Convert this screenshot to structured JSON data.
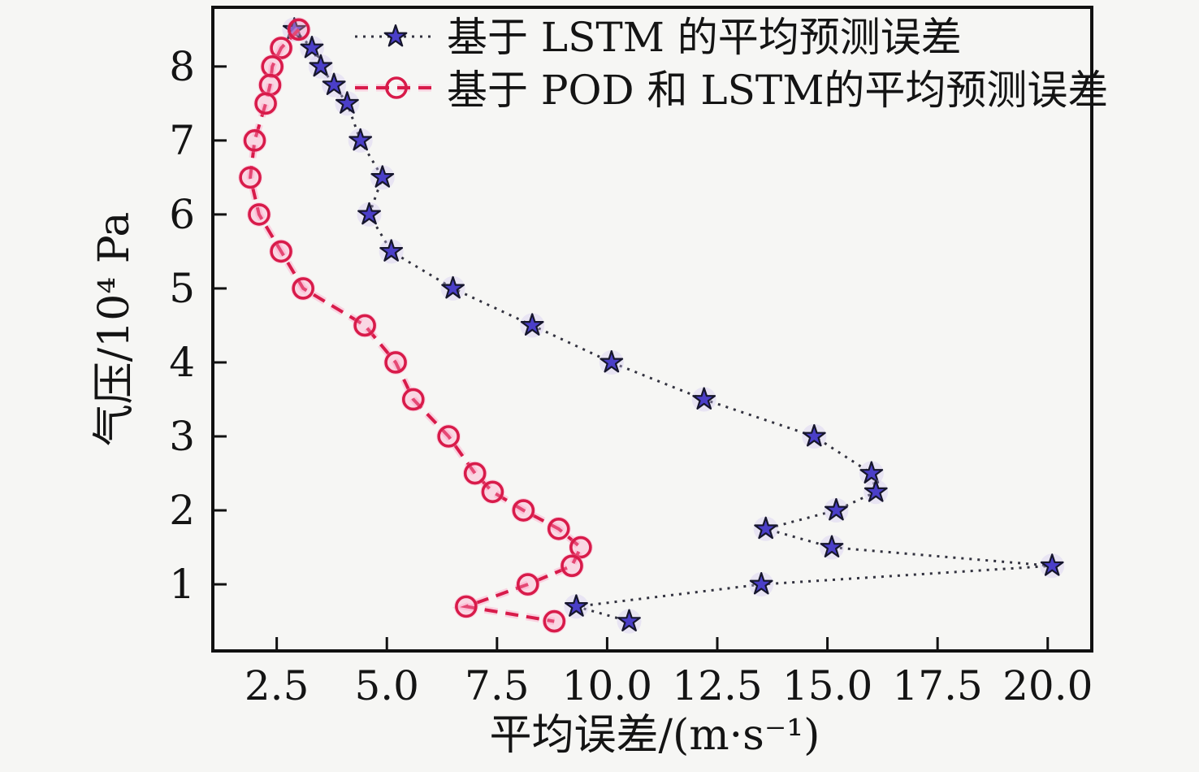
{
  "figure": {
    "background": "#f6f6f4",
    "axis_color": "#111111"
  },
  "chart_data": {
    "type": "line",
    "title": "",
    "xlabel": "平均误差/(m·s⁻¹)",
    "ylabel": "气压/10⁴ Pa",
    "grid": false,
    "legend_position": "top",
    "xlim": [
      1.05,
      21.0
    ],
    "ylim": [
      0.1,
      8.8
    ],
    "x_ticks": [
      2.5,
      5.0,
      7.5,
      10.0,
      12.5,
      15.0,
      17.5,
      20.0
    ],
    "x_tick_labels": [
      "2.5",
      "5.0",
      "7.5",
      "10.0",
      "12.5",
      "15.0",
      "17.5",
      "20.0"
    ],
    "y_ticks": [
      1,
      2,
      3,
      4,
      5,
      6,
      7,
      8
    ],
    "y_tick_labels": [
      "1",
      "2",
      "3",
      "4",
      "5",
      "6",
      "7",
      "8"
    ],
    "pressure_levels": [
      8.5,
      8.25,
      8.0,
      7.75,
      7.5,
      7.0,
      6.5,
      6.0,
      5.5,
      5.0,
      4.5,
      4.0,
      3.5,
      3.0,
      2.5,
      2.25,
      2.0,
      1.75,
      1.5,
      1.25,
      1.0,
      0.7,
      0.5
    ],
    "series": [
      {
        "name": "基于 LSTM 的平均预测误差",
        "marker": "star",
        "line_style": "dotted",
        "line_color": "#32323f",
        "marker_fill": "#4b3fc8",
        "marker_edge": "#16162c",
        "halo_color": "#cfc4f2",
        "x": [
          2.9,
          3.3,
          3.5,
          3.8,
          4.1,
          4.4,
          4.9,
          4.6,
          5.1,
          6.5,
          8.3,
          10.1,
          12.2,
          14.7,
          16.0,
          16.1,
          15.2,
          13.6,
          15.1,
          20.1,
          13.5,
          9.3,
          10.5
        ]
      },
      {
        "name": "基于 POD 和 LSTM的平均预测误差",
        "marker": "circle",
        "line_style": "dashed",
        "line_color": "#d81b4a",
        "marker_fill": "none",
        "marker_edge": "#d81b4a",
        "halo_color": "#ff9ec4",
        "x": [
          3.0,
          2.6,
          2.4,
          2.35,
          2.25,
          2.0,
          1.9,
          2.1,
          2.6,
          3.1,
          4.5,
          5.2,
          5.6,
          6.4,
          7.0,
          7.4,
          8.1,
          8.9,
          9.4,
          9.2,
          8.2,
          6.8,
          8.8
        ]
      }
    ]
  }
}
